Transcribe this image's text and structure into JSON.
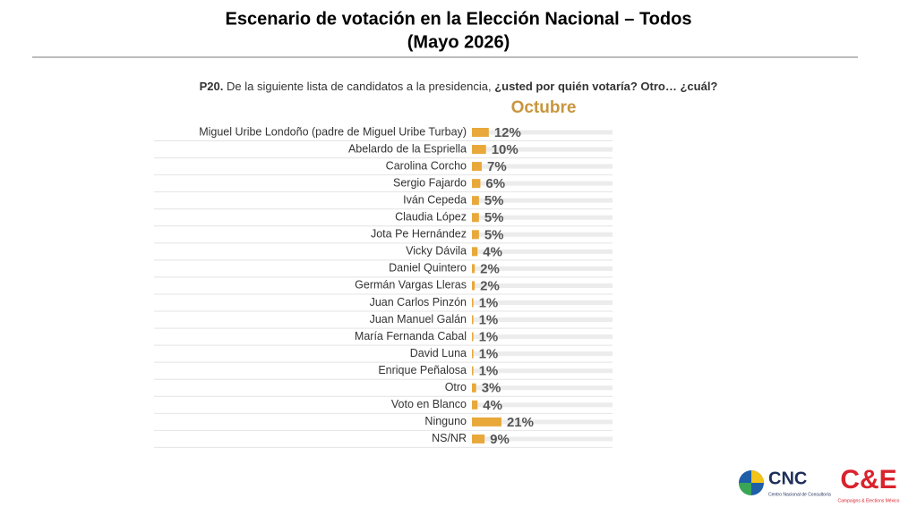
{
  "header": {
    "title": "Escenario de votación en la Elección Nacional – Todos",
    "subtitle": "(Mayo 2026)"
  },
  "question": {
    "number": "P20.",
    "text": "De la siguiente lista de candidatos a la presidencia,",
    "emphasis": "¿usted por quién votaría? Otro… ¿cuál?"
  },
  "chart_data": {
    "type": "bar",
    "orientation": "horizontal",
    "categories": [
      "Miguel Uribe Londoño (padre de Miguel Uribe Turbay)",
      "Abelardo de la Espriella",
      "Carolina Corcho",
      "Sergio Fajardo",
      "Iván Cepeda",
      "Claudia López",
      "Jota Pe Hernández",
      "Vicky Dávila",
      "Daniel Quintero",
      "Germán Vargas Lleras",
      "Juan Carlos Pinzón",
      "Juan Manuel Galán",
      "María Fernanda Cabal",
      "David Luna",
      "Enrique Peñalosa",
      "Otro",
      "Voto en Blanco",
      "Ninguno",
      "NS/NR"
    ],
    "series": [
      {
        "name": "Octubre",
        "color": "#e8a83a",
        "values": [
          12,
          10,
          7,
          6,
          5,
          5,
          5,
          4,
          2,
          2,
          1,
          1,
          1,
          1,
          1,
          3,
          4,
          21,
          9
        ],
        "value_labels": [
          "12%",
          "10%",
          "7%",
          "6%",
          "5%",
          "5%",
          "5%",
          "4%",
          "2%",
          "2%",
          "1%",
          "1%",
          "1%",
          "1%",
          "1%",
          "3%",
          "4%",
          "21%",
          "9%"
        ]
      }
    ],
    "xlim": [
      0,
      100
    ]
  },
  "logos": {
    "cnc": "CNC",
    "cnc_sub": "Centro Nacional de Consultoría",
    "ce": "C&E",
    "ce_sub": "Campaigns & Elections México"
  }
}
